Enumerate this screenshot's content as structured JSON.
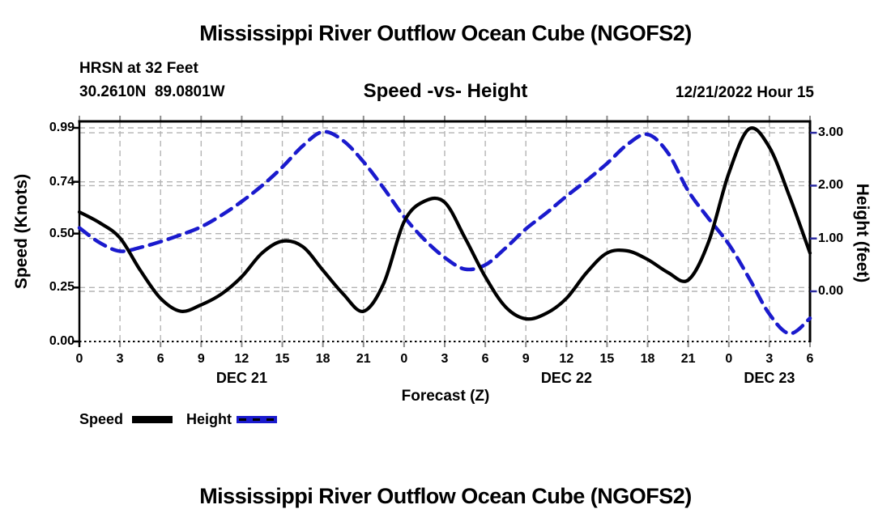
{
  "header": {
    "title": "Mississippi River Outflow Ocean Cube (NGOFS2)",
    "station_line": "HRSN at 32 Feet",
    "coords_line": "30.2610N  89.0801W",
    "subtitle": "Speed -vs- Height",
    "datetime_label": "12/21/2022 Hour 15"
  },
  "footer": {
    "title": "Mississippi River Outflow Ocean Cube (NGOFS2)"
  },
  "chart_data": {
    "type": "line",
    "title": "Speed -vs- Height",
    "xlabel": "Forecast (Z)",
    "ylabel_left": "Speed (Knots)",
    "ylabel_right": "Height (feet)",
    "grid": true,
    "x_range_hours": [
      0,
      54
    ],
    "x_tick_hours": [
      0,
      3,
      6,
      9,
      12,
      15,
      18,
      21,
      24,
      27,
      30,
      33,
      36,
      39,
      42,
      45,
      48,
      51,
      54
    ],
    "x_tick_labels": [
      "0",
      "3",
      "6",
      "9",
      "12",
      "15",
      "18",
      "21",
      "0",
      "3",
      "6",
      "9",
      "12",
      "15",
      "18",
      "21",
      "0",
      "3",
      "6"
    ],
    "day_labels": [
      {
        "label": "DEC 21",
        "hour": 12
      },
      {
        "label": "DEC 22",
        "hour": 36
      },
      {
        "label": "DEC 23",
        "hour": 51
      }
    ],
    "left_axis": {
      "ticks": [
        {
          "label": "0.00",
          "value": 0.0
        },
        {
          "label": "0.25",
          "value": 0.25
        },
        {
          "label": "0.50",
          "value": 0.5
        },
        {
          "label": "0.74",
          "value": 0.74
        },
        {
          "label": "0.99",
          "value": 0.99
        }
      ],
      "range": [
        0.0,
        0.99
      ]
    },
    "right_axis": {
      "ticks": [
        {
          "label": "0.00",
          "value": 0.0
        },
        {
          "label": "1.00",
          "value": 1.0
        },
        {
          "label": "2.00",
          "value": 2.0
        },
        {
          "label": "3.00",
          "value": 3.0
        }
      ],
      "range": [
        -0.9,
        3.1
      ]
    },
    "x_hours": [
      0,
      1.5,
      3,
      4.5,
      6,
      7.5,
      9,
      10.5,
      12,
      13.5,
      15,
      16.5,
      18,
      19.5,
      21,
      22.5,
      24,
      25.5,
      27,
      28.5,
      30,
      31.5,
      33,
      34.5,
      36,
      37.5,
      39,
      40.5,
      42,
      43.5,
      45,
      46.5,
      48,
      49.5,
      51,
      52.5,
      54
    ],
    "series": [
      {
        "name": "Speed",
        "axis": "left",
        "color": "#000000",
        "style": "solid",
        "values": [
          0.6,
          0.55,
          0.48,
          0.33,
          0.2,
          0.14,
          0.17,
          0.22,
          0.3,
          0.41,
          0.465,
          0.44,
          0.33,
          0.22,
          0.14,
          0.27,
          0.555,
          0.65,
          0.645,
          0.48,
          0.3,
          0.16,
          0.105,
          0.13,
          0.2,
          0.32,
          0.41,
          0.42,
          0.38,
          0.32,
          0.285,
          0.46,
          0.78,
          0.985,
          0.9,
          0.67,
          0.41
        ]
      },
      {
        "name": "Height",
        "axis": "right",
        "color": "#1a1acd",
        "style": "dashed",
        "values": [
          1.2,
          0.92,
          0.76,
          0.83,
          0.94,
          1.07,
          1.22,
          1.44,
          1.7,
          2.0,
          2.35,
          2.75,
          3.02,
          2.85,
          2.45,
          1.95,
          1.41,
          0.98,
          0.64,
          0.42,
          0.5,
          0.82,
          1.18,
          1.48,
          1.8,
          2.1,
          2.42,
          2.78,
          2.97,
          2.62,
          1.9,
          1.38,
          0.89,
          0.25,
          -0.43,
          -0.8,
          -0.51
        ]
      }
    ],
    "legend": [
      {
        "label": "Speed"
      },
      {
        "label": "Height"
      }
    ],
    "colors": {
      "grid": "#b4b4b4",
      "axis": "#000000",
      "minor_tick": "#8a8a8a",
      "right_tick": "#2a2aa0"
    },
    "legend_position": "bottom-left"
  }
}
